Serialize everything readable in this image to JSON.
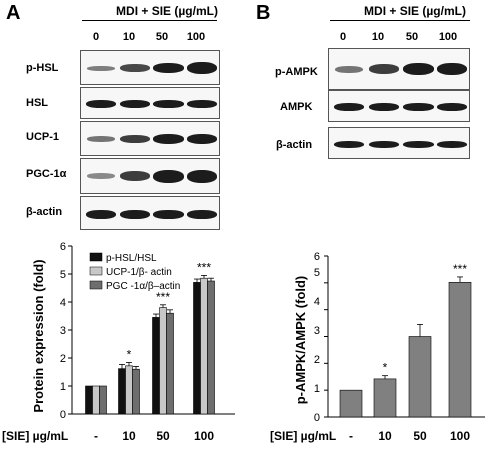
{
  "panels": {
    "A": {
      "letter": "A",
      "treatment_label": "MDI + SIE (µg/mL)",
      "doses": [
        "0",
        "10",
        "50",
        "100"
      ],
      "blot_rows": [
        "p-HSL",
        "HSL",
        "UCP-1",
        "PGC-1α",
        "β-actin"
      ]
    },
    "B": {
      "letter": "B",
      "treatment_label": "MDI + SIE (µg/mL)",
      "doses": [
        "0",
        "10",
        "50",
        "100"
      ],
      "blot_rows": [
        "p-AMPK",
        "AMPK",
        "β-actin"
      ]
    }
  },
  "chart_data": [
    {
      "type": "bar",
      "ylabel": "Protein expression (fold)",
      "xlabel_prefix": "[SIE] µg/mL",
      "categories": [
        "-",
        "10",
        "50",
        "100"
      ],
      "ylim": [
        0,
        6
      ],
      "yticks": [
        "0",
        "1",
        "2",
        "3",
        "4",
        "5",
        "6"
      ],
      "series": [
        {
          "name": "p-HSL/HSL",
          "values": [
            1.0,
            1.62,
            3.45,
            4.7
          ],
          "errors": [
            0,
            0.15,
            0.12,
            0.12
          ],
          "color": "#111111"
        },
        {
          "name": "UCP-1/β- actin",
          "values": [
            1.0,
            1.72,
            3.8,
            4.85
          ],
          "errors": [
            0,
            0.12,
            0.1,
            0.1
          ],
          "color": "#c8c8c8"
        },
        {
          "name": "PGC -1α/β–actin",
          "values": [
            1.0,
            1.6,
            3.6,
            4.75
          ],
          "errors": [
            0,
            0.1,
            0.12,
            0.1
          ],
          "color": "#6e6e6e"
        }
      ],
      "significance": [
        "",
        "*",
        "***",
        "***"
      ],
      "legend": "top-left"
    },
    {
      "type": "bar",
      "ylabel": "p-AMPK/AMPK (fold)",
      "xlabel_prefix": "[SIE] µg/mL",
      "categories": [
        "-",
        "10",
        "50",
        "100"
      ],
      "ylim": [
        0,
        6
      ],
      "yticks": [
        "0",
        "1",
        "2",
        "3",
        "4",
        "5",
        "6"
      ],
      "series": [
        {
          "values": [
            1.0,
            1.42,
            3.0,
            5.02
          ],
          "errors": [
            0,
            0.12,
            0.45,
            0.2
          ],
          "color": "#808080"
        }
      ],
      "significance": [
        "",
        "*",
        "",
        "***"
      ]
    }
  ]
}
